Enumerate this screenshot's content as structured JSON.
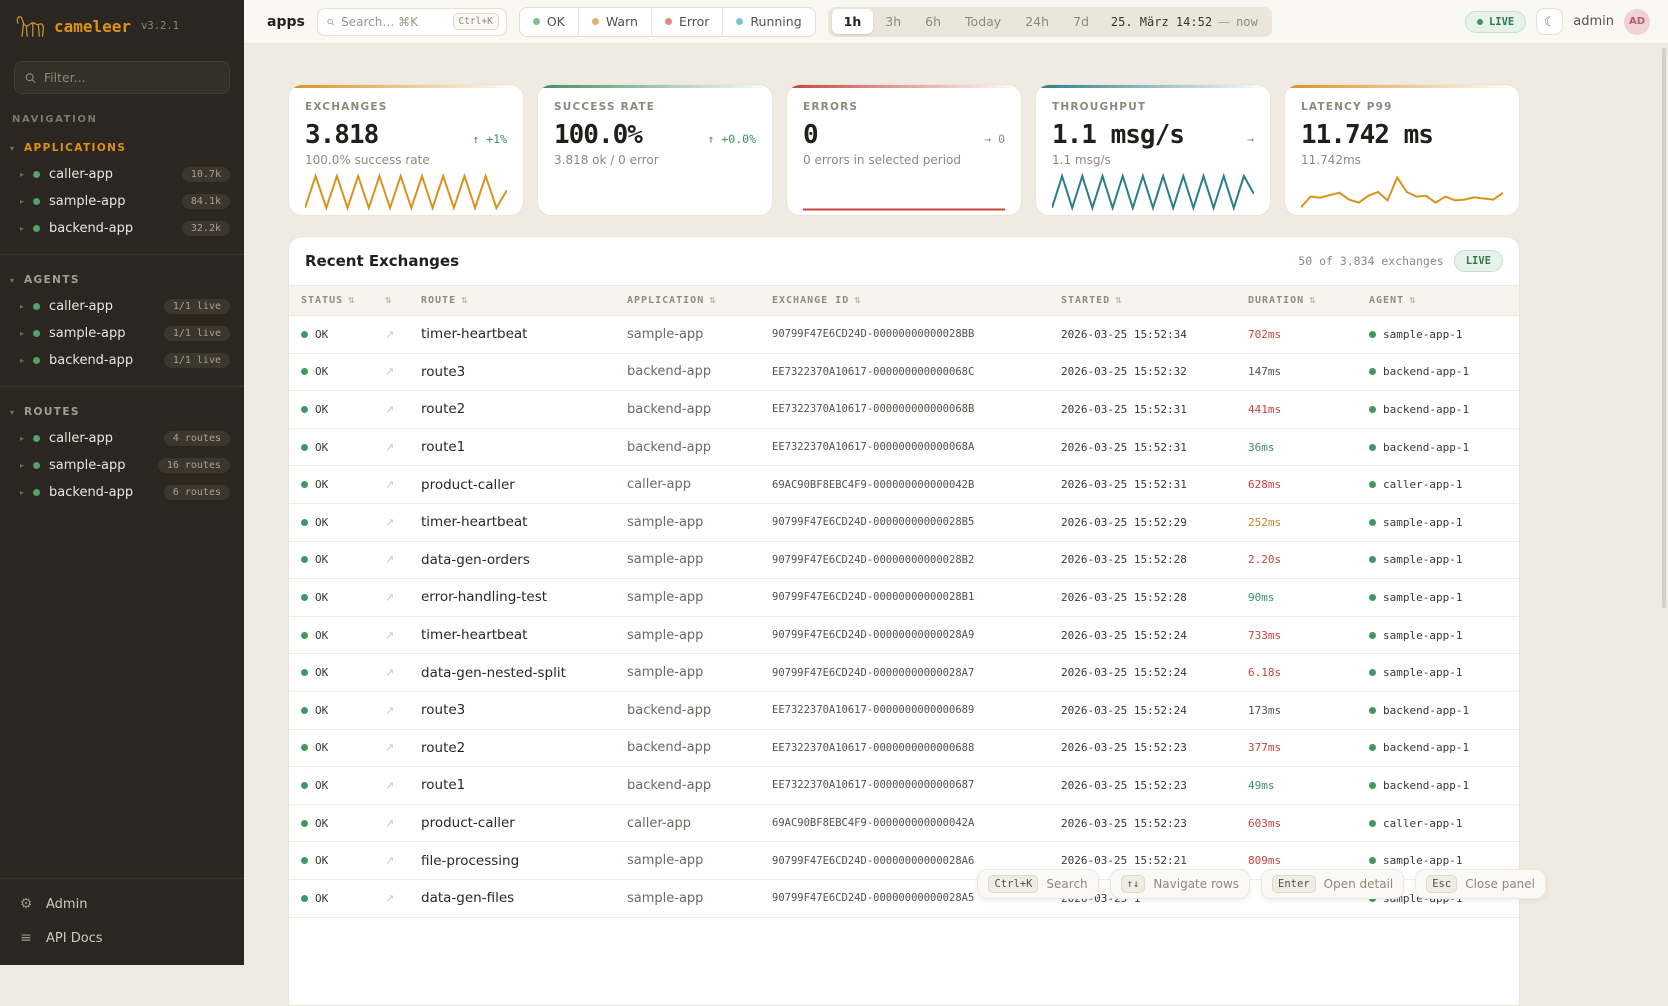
{
  "brand": {
    "name": "cameleer",
    "version": "v3.2.1"
  },
  "colors": {
    "accent_orange": "#dd9218",
    "green": "#3d9960",
    "red": "#c9443c",
    "teal": "#2c7d8c",
    "amber": "#c9862e"
  },
  "sidebar": {
    "filter_placeholder": "Filter...",
    "nav_label": "NAVIGATION",
    "sections": [
      {
        "title": "APPLICATIONS",
        "accent": "#dd9218",
        "items": [
          {
            "name": "caller-app",
            "badge": "10.7k"
          },
          {
            "name": "sample-app",
            "badge": "84.1k"
          },
          {
            "name": "backend-app",
            "badge": "32.2k"
          }
        ]
      },
      {
        "title": "AGENTS",
        "accent": "",
        "items": [
          {
            "name": "caller-app",
            "badge": "1/1 live"
          },
          {
            "name": "sample-app",
            "badge": "1/1 live"
          },
          {
            "name": "backend-app",
            "badge": "1/1 live"
          }
        ]
      },
      {
        "title": "ROUTES",
        "accent": "",
        "items": [
          {
            "name": "caller-app",
            "badge": "4 routes"
          },
          {
            "name": "sample-app",
            "badge": "16 routes"
          },
          {
            "name": "backend-app",
            "badge": "6 routes"
          }
        ]
      }
    ],
    "footer": [
      {
        "label": "Admin",
        "icon": "gear"
      },
      {
        "label": "API Docs",
        "icon": "list"
      }
    ]
  },
  "topbar": {
    "context_label": "apps",
    "search": {
      "placeholder": "Search… ⌘K",
      "kbd": "Ctrl+K"
    },
    "status_filters": [
      {
        "label": "OK",
        "color": "#7fbf8f"
      },
      {
        "label": "Warn",
        "color": "#e0b36a"
      },
      {
        "label": "Error",
        "color": "#e08a80"
      },
      {
        "label": "Running",
        "color": "#7fc3cf"
      }
    ],
    "time_ranges": [
      "1h",
      "3h",
      "6h",
      "Today",
      "24h",
      "7d"
    ],
    "active_range": "1h",
    "date_label": "25. März 14:52",
    "date_sep": "—",
    "date_now": "now",
    "live_label": "LIVE",
    "user": {
      "name": "admin",
      "initials": "AD"
    }
  },
  "cards": [
    {
      "label": "EXCHANGES",
      "value": "3.818",
      "delta": "↑ +1%",
      "delta_color": "green",
      "sub": "100.0% success rate",
      "accent": "#d9921e",
      "spark": {
        "color": "#d9921e",
        "values": [
          8,
          92,
          8,
          92,
          8,
          92,
          8,
          92,
          8,
          92,
          8,
          92,
          8,
          92,
          8,
          92,
          8,
          92,
          8,
          55
        ]
      }
    },
    {
      "label": "SUCCESS RATE",
      "value": "100.0%",
      "delta": "↑ +0.0%",
      "delta_color": "green",
      "sub": "3.818 ok / 0 error",
      "accent": "#3f8f5f",
      "spark": null
    },
    {
      "label": "ERRORS",
      "value": "0",
      "delta": "→ 0",
      "delta_color": "gray",
      "sub": "0 errors in selected period",
      "accent": "#c9443c",
      "spark": {
        "color": "#c9443c",
        "values": [
          4,
          4
        ]
      }
    },
    {
      "label": "THROUGHPUT",
      "value": "1.1 msg/s",
      "delta": "→",
      "delta_color": "gray",
      "sub": "1.1 msg/s",
      "accent": "#2c7d8c",
      "spark": {
        "color": "#2c7d8c",
        "values": [
          8,
          92,
          8,
          92,
          8,
          92,
          8,
          92,
          8,
          92,
          8,
          92,
          8,
          92,
          8,
          92,
          8,
          92,
          8,
          92,
          45
        ]
      }
    },
    {
      "label": "LATENCY P99",
      "value": "11.742 ms",
      "delta": "",
      "delta_color": "gray",
      "sub": "11.742ms",
      "accent": "#d9921e",
      "spark": {
        "color": "#d9921e",
        "values": [
          10,
          38,
          35,
          42,
          48,
          30,
          22,
          40,
          50,
          28,
          88,
          50,
          38,
          40,
          22,
          38,
          28,
          30,
          36,
          33,
          30,
          48
        ]
      }
    }
  ],
  "table": {
    "title": "Recent Exchanges",
    "summary": "50 of 3.834 exchanges",
    "live_label": "LIVE",
    "columns": [
      "STATUS",
      "",
      "ROUTE",
      "APPLICATION",
      "EXCHANGE ID",
      "STARTED",
      "DURATION",
      "AGENT"
    ],
    "rows": [
      {
        "status": "OK",
        "route": "timer-heartbeat",
        "app": "sample-app",
        "exchange_id": "90799F47E6CD24D-00000000000028BB",
        "started": "2026-03-25 15:52:34",
        "duration": "702ms",
        "duration_color": "red",
        "agent": "sample-app-1"
      },
      {
        "status": "OK",
        "route": "route3",
        "app": "backend-app",
        "exchange_id": "EE7322370A10617-000000000000068C",
        "started": "2026-03-25 15:52:32",
        "duration": "147ms",
        "duration_color": "neutral",
        "agent": "backend-app-1"
      },
      {
        "status": "OK",
        "route": "route2",
        "app": "backend-app",
        "exchange_id": "EE7322370A10617-000000000000068B",
        "started": "2026-03-25 15:52:31",
        "duration": "441ms",
        "duration_color": "red",
        "agent": "backend-app-1"
      },
      {
        "status": "OK",
        "route": "route1",
        "app": "backend-app",
        "exchange_id": "EE7322370A10617-000000000000068A",
        "started": "2026-03-25 15:52:31",
        "duration": "36ms",
        "duration_color": "green",
        "agent": "backend-app-1"
      },
      {
        "status": "OK",
        "route": "product-caller",
        "app": "caller-app",
        "exchange_id": "69AC90BF8EBC4F9-000000000000042B",
        "started": "2026-03-25 15:52:31",
        "duration": "628ms",
        "duration_color": "red",
        "agent": "caller-app-1"
      },
      {
        "status": "OK",
        "route": "timer-heartbeat",
        "app": "sample-app",
        "exchange_id": "90799F47E6CD24D-00000000000028B5",
        "started": "2026-03-25 15:52:29",
        "duration": "252ms",
        "duration_color": "amber",
        "agent": "sample-app-1"
      },
      {
        "status": "OK",
        "route": "data-gen-orders",
        "app": "sample-app",
        "exchange_id": "90799F47E6CD24D-00000000000028B2",
        "started": "2026-03-25 15:52:28",
        "duration": "2.20s",
        "duration_color": "red",
        "agent": "sample-app-1"
      },
      {
        "status": "OK",
        "route": "error-handling-test",
        "app": "sample-app",
        "exchange_id": "90799F47E6CD24D-00000000000028B1",
        "started": "2026-03-25 15:52:28",
        "duration": "90ms",
        "duration_color": "green",
        "agent": "sample-app-1"
      },
      {
        "status": "OK",
        "route": "timer-heartbeat",
        "app": "sample-app",
        "exchange_id": "90799F47E6CD24D-00000000000028A9",
        "started": "2026-03-25 15:52:24",
        "duration": "733ms",
        "duration_color": "red",
        "agent": "sample-app-1"
      },
      {
        "status": "OK",
        "route": "data-gen-nested-split",
        "app": "sample-app",
        "exchange_id": "90799F47E6CD24D-00000000000028A7",
        "started": "2026-03-25 15:52:24",
        "duration": "6.18s",
        "duration_color": "red",
        "agent": "sample-app-1"
      },
      {
        "status": "OK",
        "route": "route3",
        "app": "backend-app",
        "exchange_id": "EE7322370A10617-0000000000000689",
        "started": "2026-03-25 15:52:24",
        "duration": "173ms",
        "duration_color": "neutral",
        "agent": "backend-app-1"
      },
      {
        "status": "OK",
        "route": "route2",
        "app": "backend-app",
        "exchange_id": "EE7322370A10617-0000000000000688",
        "started": "2026-03-25 15:52:23",
        "duration": "377ms",
        "duration_color": "red",
        "agent": "backend-app-1"
      },
      {
        "status": "OK",
        "route": "route1",
        "app": "backend-app",
        "exchange_id": "EE7322370A10617-0000000000000687",
        "started": "2026-03-25 15:52:23",
        "duration": "49ms",
        "duration_color": "green",
        "agent": "backend-app-1"
      },
      {
        "status": "OK",
        "route": "product-caller",
        "app": "caller-app",
        "exchange_id": "69AC90BF8EBC4F9-000000000000042A",
        "started": "2026-03-25 15:52:23",
        "duration": "603ms",
        "duration_color": "red",
        "agent": "caller-app-1"
      },
      {
        "status": "OK",
        "route": "file-processing",
        "app": "sample-app",
        "exchange_id": "90799F47E6CD24D-00000000000028A6",
        "started": "2026-03-25 15:52:21",
        "duration": "809ms",
        "duration_color": "red",
        "agent": "sample-app-1"
      },
      {
        "status": "OK",
        "route": "data-gen-files",
        "app": "sample-app",
        "exchange_id": "90799F47E6CD24D-00000000000028A5",
        "started": "2026-03-25 1",
        "duration": "",
        "duration_color": "neutral",
        "agent": "sample-app-1"
      }
    ]
  },
  "shortcuts": [
    {
      "key": "Ctrl+K",
      "label": "Search"
    },
    {
      "key": "↑↓",
      "label": "Navigate rows"
    },
    {
      "key": "Enter",
      "label": "Open detail"
    },
    {
      "key": "Esc",
      "label": "Close panel"
    }
  ]
}
